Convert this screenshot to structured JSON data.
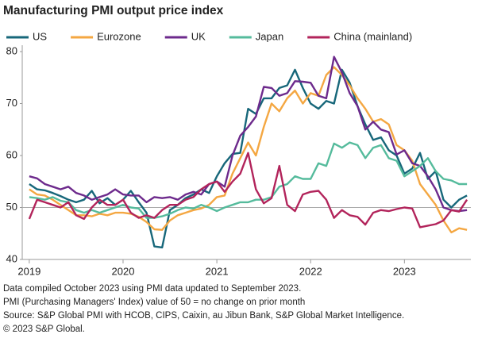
{
  "chart_data": {
    "type": "line",
    "title": "Manufacturing PMI output price index",
    "x": [
      0,
      1,
      2,
      3,
      4,
      5,
      6,
      7,
      8,
      9,
      10,
      11,
      12,
      13,
      14,
      15,
      16,
      17,
      18,
      19,
      20,
      21,
      22,
      23,
      24,
      25,
      26,
      27,
      28,
      29,
      30,
      31,
      32,
      33,
      34,
      35,
      36,
      37,
      38,
      39,
      40,
      41,
      42,
      43,
      44,
      45,
      46,
      47,
      48,
      49,
      50,
      51,
      52,
      53,
      54,
      55,
      56
    ],
    "xlim": [
      -0.9,
      56.5
    ],
    "xticks": [
      {
        "value": 0,
        "label": "2019"
      },
      {
        "value": 12,
        "label": "2020"
      },
      {
        "value": 24,
        "label": "2021"
      },
      {
        "value": 36,
        "label": "2022"
      },
      {
        "value": 48,
        "label": "2023"
      }
    ],
    "ylim": [
      40,
      80
    ],
    "yticks": [
      40,
      50,
      60,
      70,
      80
    ],
    "hline": 50,
    "series": [
      {
        "name": "US",
        "color": "#17677a",
        "values": [
          54.5,
          53.5,
          53.3,
          52.8,
          52.2,
          51.5,
          51.0,
          51.5,
          53.2,
          50.8,
          51.8,
          50.5,
          51.5,
          53.2,
          51.0,
          49.0,
          42.5,
          42.3,
          49.5,
          50.5,
          51.8,
          52.5,
          53.5,
          52.8,
          56.0,
          58.5,
          60.3,
          60.5,
          69.0,
          68.0,
          71.0,
          71.0,
          73.0,
          73.5,
          76.5,
          73.0,
          70.0,
          69.0,
          70.5,
          70.0,
          76.5,
          74.0,
          69.5,
          66.0,
          63.0,
          63.5,
          61.0,
          60.0,
          56.5,
          57.5,
          60.5,
          55.5,
          57.0,
          51.5,
          50.0,
          51.5,
          52.3
        ]
      },
      {
        "name": "Eurozone",
        "color": "#f4a742",
        "values": [
          53.5,
          52.5,
          52.3,
          51.5,
          50.5,
          49.5,
          48.5,
          48.5,
          48.3,
          48.8,
          48.5,
          49.0,
          49.0,
          48.8,
          48.2,
          47.2,
          45.8,
          45.7,
          47.5,
          48.5,
          49.0,
          49.5,
          49.8,
          50.5,
          52.0,
          52.3,
          56.5,
          59.5,
          62.5,
          60.0,
          65.5,
          70.0,
          68.5,
          71.0,
          72.5,
          70.0,
          72.0,
          71.5,
          75.5,
          77.0,
          75.5,
          73.5,
          71.0,
          69.0,
          66.5,
          67.0,
          66.0,
          62.0,
          61.0,
          59.0,
          54.5,
          52.5,
          50.5,
          47.5,
          45.2,
          46.0,
          45.7
        ]
      },
      {
        "name": "UK",
        "color": "#6d2a8c",
        "values": [
          56.0,
          55.6,
          54.5,
          54.0,
          53.5,
          54.0,
          52.8,
          52.3,
          51.5,
          52.0,
          52.5,
          53.5,
          52.5,
          52.3,
          52.3,
          51.0,
          52.0,
          51.8,
          52.0,
          51.5,
          52.5,
          53.0,
          52.5,
          54.5,
          55.0,
          54.0,
          60.0,
          63.8,
          65.5,
          67.5,
          73.2,
          73.0,
          71.5,
          72.0,
          74.3,
          74.2,
          74.0,
          71.5,
          71.0,
          79.0,
          76.0,
          72.0,
          69.5,
          65.0,
          66.5,
          65.0,
          64.5,
          60.2,
          61.0,
          58.5,
          58.0,
          56.0,
          53.5,
          50.0,
          49.5,
          49.3,
          49.5
        ]
      },
      {
        "name": "Japan",
        "color": "#55bb9c",
        "values": [
          52.0,
          51.8,
          51.5,
          52.0,
          51.3,
          51.0,
          49.5,
          49.0,
          49.5,
          49.0,
          49.5,
          50.0,
          50.5,
          50.0,
          49.8,
          48.0,
          48.0,
          48.3,
          48.8,
          49.5,
          50.0,
          49.8,
          50.5,
          50.0,
          49.3,
          50.0,
          50.5,
          51.0,
          51.0,
          51.5,
          51.5,
          52.0,
          54.0,
          54.5,
          56.0,
          55.5,
          55.5,
          58.5,
          58.0,
          62.3,
          61.5,
          62.5,
          62.0,
          59.5,
          61.5,
          62.0,
          59.5,
          59.0,
          56.0,
          57.0,
          58.0,
          59.5,
          57.0,
          55.5,
          55.2,
          54.5,
          54.5
        ]
      },
      {
        "name": "China (mainland)",
        "color": "#b2245b",
        "values": [
          47.8,
          51.5,
          51.0,
          50.5,
          50.0,
          51.0,
          48.5,
          47.8,
          50.0,
          51.5,
          50.5,
          50.5,
          51.5,
          49.0,
          48.0,
          48.5,
          48.0,
          49.5,
          50.5,
          50.5,
          51.5,
          52.0,
          53.5,
          54.5,
          55.0,
          53.0,
          55.0,
          56.5,
          60.5,
          53.5,
          50.8,
          51.8,
          58.0,
          50.5,
          49.3,
          52.5,
          53.0,
          53.2,
          51.5,
          48.0,
          49.5,
          48.5,
          48.2,
          46.7,
          49.0,
          49.5,
          49.3,
          49.7,
          50.0,
          49.8,
          46.2,
          46.5,
          46.8,
          47.5,
          49.5,
          49.2,
          51.5
        ]
      }
    ],
    "notes": [
      "Data compiled October 2023 using PMI data updated to September 2023.",
      "PMI (Purchasing Managers' Index) value of 50 = no change on prior month",
      "Source: S&P Global PMI with HCOB, CIPS, Caixin, au Jibun Bank, S&P Global Market Intelligence.",
      "© 2023 S&P Global."
    ]
  }
}
